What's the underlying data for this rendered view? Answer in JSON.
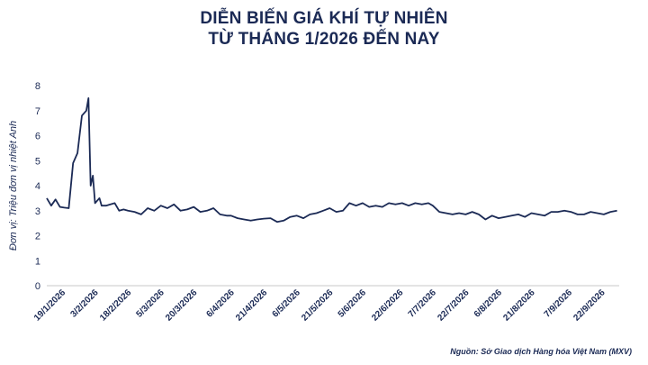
{
  "chart_data": {
    "type": "line",
    "title_line1": "DIỄN BIẾN GIÁ KHÍ TỰ NHIÊN",
    "title_line2": "TỪ THÁNG 1/2026 ĐẾN NAY",
    "ylabel": "Đơn vị: Triệu đơn vị nhiệt Anh",
    "xlabel": "",
    "ylim": [
      0,
      8
    ],
    "yticks": [
      0,
      1,
      2,
      3,
      4,
      5,
      6,
      7,
      8
    ],
    "xlim": [
      "2026-01-12",
      "2026-09-30"
    ],
    "xtick_labels": [
      "19/1/2026",
      "3/2/2026",
      "18/2/2026",
      "5/3/2026",
      "20/3/2026",
      "6/4/2026",
      "21/4/2026",
      "6/5/2026",
      "21/5/2026",
      "5/6/2026",
      "22/6/2026",
      "7/7/2026",
      "22/7/2026",
      "6/8/2026",
      "21/8/2026",
      "7/9/2026",
      "22/9/2026"
    ],
    "xtick_dates": [
      "2026-01-19",
      "2026-02-03",
      "2026-02-18",
      "2026-03-05",
      "2026-03-20",
      "2026-04-06",
      "2026-04-21",
      "2026-05-06",
      "2026-05-21",
      "2026-06-05",
      "2026-06-22",
      "2026-07-07",
      "2026-07-22",
      "2026-08-06",
      "2026-08-21",
      "2026-09-07",
      "2026-09-22"
    ],
    "line_color": "#1b2a55",
    "grid": false,
    "series": [
      {
        "x": [
          "2026-01-12",
          "2026-01-14",
          "2026-01-16",
          "2026-01-18",
          "2026-01-20",
          "2026-01-22",
          "2026-01-24",
          "2026-01-26",
          "2026-01-28",
          "2026-01-30",
          "2026-01-31",
          "2026-02-01",
          "2026-02-02",
          "2026-02-03",
          "2026-02-04",
          "2026-02-05",
          "2026-02-06",
          "2026-02-08",
          "2026-02-10",
          "2026-02-12",
          "2026-02-14",
          "2026-02-16",
          "2026-02-18",
          "2026-02-21",
          "2026-02-24",
          "2026-02-27",
          "2026-03-02",
          "2026-03-05",
          "2026-03-08",
          "2026-03-11",
          "2026-03-14",
          "2026-03-17",
          "2026-03-20",
          "2026-03-23",
          "2026-03-26",
          "2026-03-29",
          "2026-04-01",
          "2026-04-04",
          "2026-04-06",
          "2026-04-09",
          "2026-04-12",
          "2026-04-15",
          "2026-04-18",
          "2026-04-21",
          "2026-04-24",
          "2026-04-27",
          "2026-04-30",
          "2026-05-03",
          "2026-05-06",
          "2026-05-09",
          "2026-05-12",
          "2026-05-15",
          "2026-05-18",
          "2026-05-21",
          "2026-05-24",
          "2026-05-27",
          "2026-05-30",
          "2026-06-02",
          "2026-06-05",
          "2026-06-08",
          "2026-06-11",
          "2026-06-14",
          "2026-06-17",
          "2026-06-20",
          "2026-06-23",
          "2026-06-26",
          "2026-06-29",
          "2026-07-02",
          "2026-07-05",
          "2026-07-07",
          "2026-07-10",
          "2026-07-13",
          "2026-07-16",
          "2026-07-19",
          "2026-07-22",
          "2026-07-25",
          "2026-07-28",
          "2026-07-31",
          "2026-08-03",
          "2026-08-06",
          "2026-08-09",
          "2026-08-12",
          "2026-08-15",
          "2026-08-18",
          "2026-08-21",
          "2026-08-24",
          "2026-08-27",
          "2026-08-30",
          "2026-09-02",
          "2026-09-05",
          "2026-09-08",
          "2026-09-11",
          "2026-09-14",
          "2026-09-17",
          "2026-09-20",
          "2026-09-23",
          "2026-09-26",
          "2026-09-29"
        ],
        "y": [
          3.5,
          3.2,
          3.45,
          3.15,
          3.12,
          3.1,
          4.9,
          5.3,
          6.8,
          7.0,
          7.5,
          4.0,
          4.4,
          3.3,
          3.4,
          3.5,
          3.2,
          3.2,
          3.25,
          3.3,
          3.0,
          3.05,
          3.0,
          2.95,
          2.85,
          3.1,
          3.0,
          3.2,
          3.1,
          3.25,
          3.0,
          3.05,
          3.15,
          2.95,
          3.0,
          3.1,
          2.85,
          2.8,
          2.8,
          2.7,
          2.65,
          2.6,
          2.65,
          2.68,
          2.7,
          2.55,
          2.6,
          2.75,
          2.8,
          2.7,
          2.85,
          2.9,
          3.0,
          3.1,
          2.95,
          3.0,
          3.3,
          3.2,
          3.3,
          3.15,
          3.2,
          3.15,
          3.3,
          3.25,
          3.3,
          3.2,
          3.3,
          3.25,
          3.3,
          3.2,
          2.95,
          2.9,
          2.85,
          2.9,
          2.85,
          2.95,
          2.85,
          2.65,
          2.8,
          2.7,
          2.75,
          2.8,
          2.85,
          2.75,
          2.9,
          2.85,
          2.8,
          2.95,
          2.95,
          3.0,
          2.95,
          2.85,
          2.85,
          2.95,
          2.9,
          2.85,
          2.95,
          3.0
        ]
      }
    ]
  },
  "source": "Nguồn: Sở Giao dịch Hàng hóa Việt Nam (MXV)"
}
